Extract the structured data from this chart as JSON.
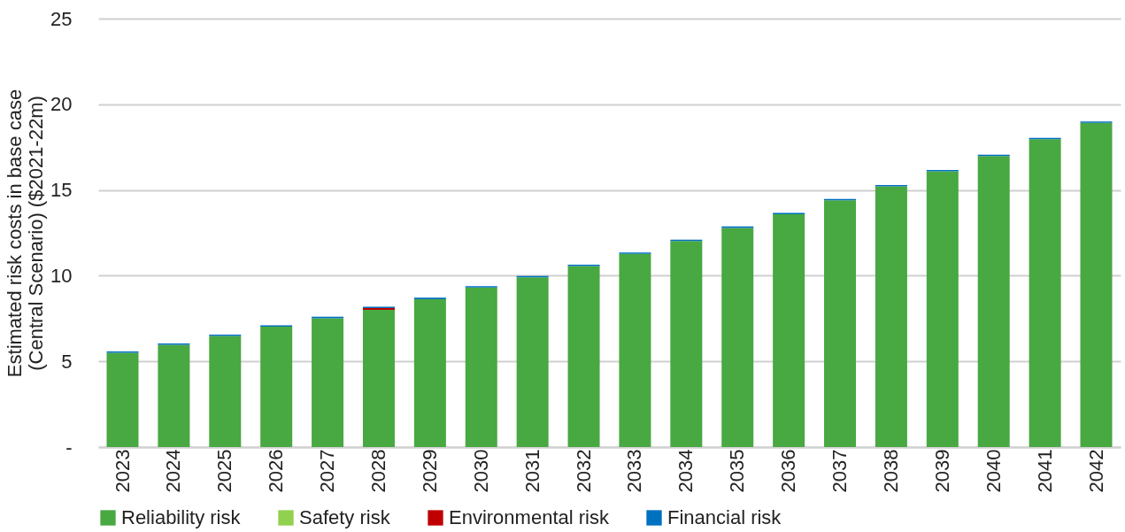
{
  "chart_data": {
    "type": "bar",
    "stacked": true,
    "ylabel": "Estimated risk costs in base case (Central Scenario) ($2021-22m)",
    "categories": [
      "2023",
      "2024",
      "2025",
      "2026",
      "2027",
      "2028",
      "2029",
      "2030",
      "2031",
      "2032",
      "2033",
      "2034",
      "2035",
      "2036",
      "2037",
      "2038",
      "2039",
      "2040",
      "2041",
      "2042"
    ],
    "series": [
      {
        "name": "Reliability risk",
        "color": "#48a842",
        "values": [
          5.5,
          5.96,
          6.48,
          7.02,
          7.52,
          8.0,
          8.63,
          9.31,
          9.9,
          10.56,
          11.27,
          12.02,
          12.79,
          13.58,
          14.4,
          15.21,
          16.09,
          16.98,
          17.96,
          18.92
        ]
      },
      {
        "name": "Safety risk",
        "color": "#92d050",
        "values": [
          0,
          0,
          0,
          0,
          0,
          0,
          0,
          0,
          0,
          0,
          0,
          0,
          0,
          0,
          0,
          0,
          0,
          0,
          0,
          0
        ]
      },
      {
        "name": "Environmental risk",
        "color": "#c00000",
        "values": [
          0,
          0,
          0,
          0,
          0,
          0.11,
          0,
          0,
          0,
          0,
          0,
          0,
          0,
          0,
          0,
          0,
          0,
          0,
          0,
          0
        ]
      },
      {
        "name": "Financial risk",
        "color": "#0070c0",
        "values": [
          0.08,
          0.08,
          0.08,
          0.08,
          0.08,
          0.08,
          0.08,
          0.08,
          0.08,
          0.08,
          0.08,
          0.08,
          0.08,
          0.08,
          0.08,
          0.08,
          0.08,
          0.08,
          0.08,
          0.08
        ]
      }
    ],
    "ylim": [
      0,
      25
    ],
    "yticks": [
      {
        "value": 0,
        "label": "-"
      },
      5,
      10,
      15,
      20,
      25
    ],
    "grid": "y",
    "legend": "bottom"
  }
}
